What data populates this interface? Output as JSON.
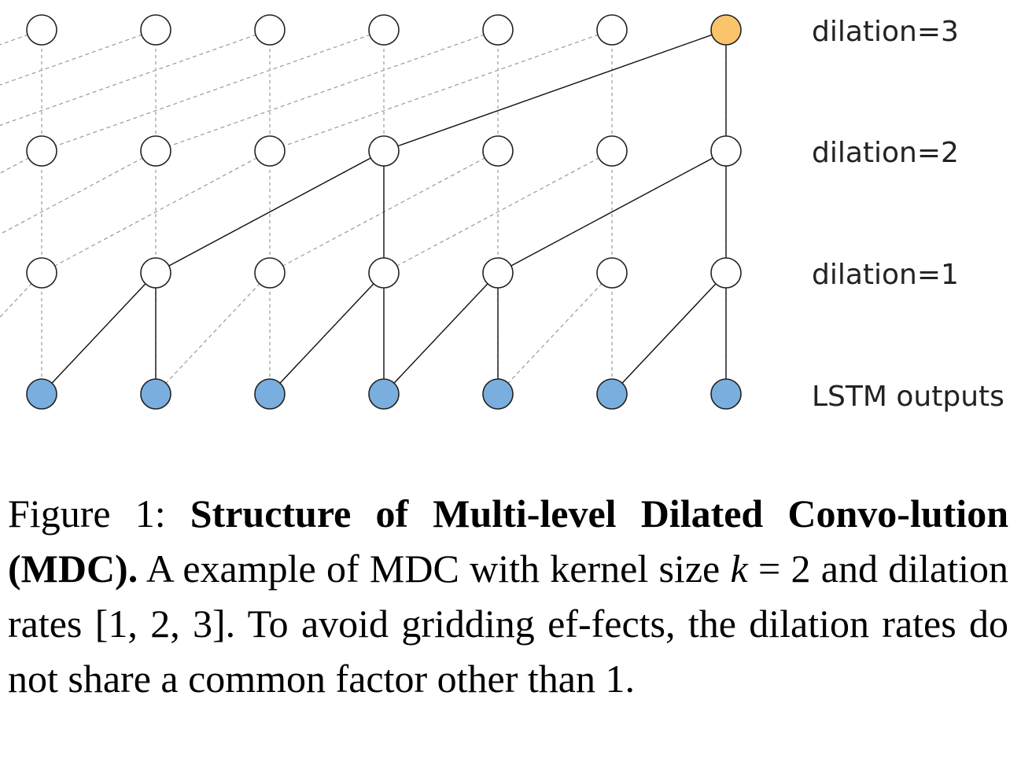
{
  "diagram": {
    "levels": [
      {
        "label": "dilation=3"
      },
      {
        "label": "dilation=2"
      },
      {
        "label": "dilation=1"
      },
      {
        "label": "LSTM outputs"
      }
    ],
    "columns": 7,
    "colors": {
      "output_node": "#f9c46b",
      "hidden_node": "#ffffff",
      "input_node": "#7aaede",
      "node_stroke": "#222222",
      "solid_edge": "#111111",
      "dashed_edge": "#9a9a9a"
    }
  },
  "caption": {
    "prefix": "Figure 1: ",
    "bold_title": "Structure of Multi-level Dilated Convo-lution (MDC).",
    "text_a": " A example of MDC with kernel size ",
    "math_k": "k",
    "text_eq": " = 2",
    "text_b": " and dilation rates ",
    "math_rates": "[1, 2, 3]",
    "text_c": ". To avoid gridding ef-fects, the dilation rates do not share a common factor other than 1."
  }
}
